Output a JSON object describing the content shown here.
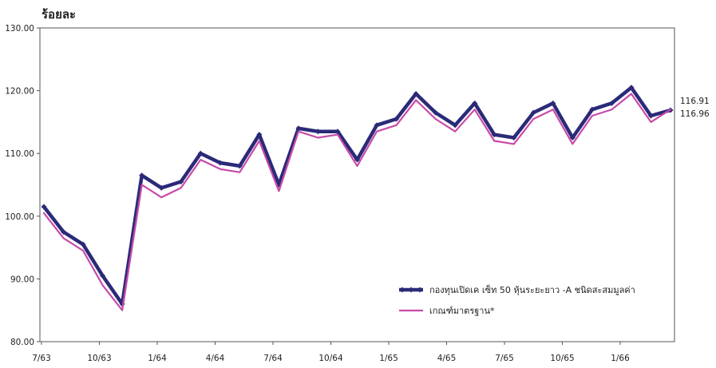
{
  "chart_data": {
    "type": "line",
    "title": "ร้อยละ",
    "xlabel": "",
    "ylabel": "",
    "ylim": [
      80,
      130
    ],
    "yticks": [
      "80.00",
      "90.00",
      "100.00",
      "110.00",
      "120.00",
      "130.00"
    ],
    "xticks": [
      "7/63",
      "10/63",
      "1/64",
      "4/64",
      "7/64",
      "10/64",
      "1/65",
      "4/65",
      "7/65",
      "10/65",
      "1/66"
    ],
    "grid": false,
    "legend_position": "bottom-right",
    "end_labels": [
      "116.91",
      "116.96"
    ],
    "colors": {
      "fund": "#2b2a78",
      "benchmark": "#c84aa8"
    },
    "x": [
      "7/63",
      "8/63",
      "9/63",
      "10/63",
      "11/63",
      "12/63",
      "1/64",
      "2/64",
      "3/64",
      "4/64",
      "5/64",
      "6/64",
      "7/64",
      "8/64",
      "9/64",
      "10/64",
      "11/64",
      "12/64",
      "1/65",
      "2/65",
      "3/65",
      "4/65",
      "5/65",
      "6/65",
      "7/65",
      "8/65",
      "9/65",
      "10/65",
      "11/65",
      "12/65",
      "1/66",
      "2/66",
      "3/66"
    ],
    "series": [
      {
        "name": "กองทุนเปิดเค เซ็ท 50 หุ้นระยะยาว -A ชนิดสะสมมูลค่า",
        "values": [
          101.5,
          97.5,
          95.5,
          90.5,
          86.0,
          106.5,
          104.5,
          105.5,
          110.0,
          108.5,
          108.0,
          113.0,
          105.0,
          114.0,
          113.5,
          113.5,
          109.0,
          114.5,
          115.5,
          119.5,
          116.5,
          114.5,
          118.0,
          113.0,
          112.5,
          116.5,
          118.0,
          112.5,
          117.0,
          118.0,
          120.5,
          116.0,
          116.9
        ]
      },
      {
        "name": "เกณฑ์มาตรฐาน*",
        "values": [
          100.5,
          96.5,
          94.5,
          89.0,
          85.0,
          105.0,
          103.0,
          104.5,
          109.0,
          107.5,
          107.0,
          112.0,
          104.0,
          113.5,
          112.5,
          113.0,
          108.0,
          113.5,
          114.5,
          118.5,
          115.5,
          113.5,
          117.0,
          112.0,
          111.5,
          115.5,
          117.0,
          111.5,
          116.0,
          117.0,
          119.5,
          115.0,
          117.0
        ]
      }
    ]
  }
}
